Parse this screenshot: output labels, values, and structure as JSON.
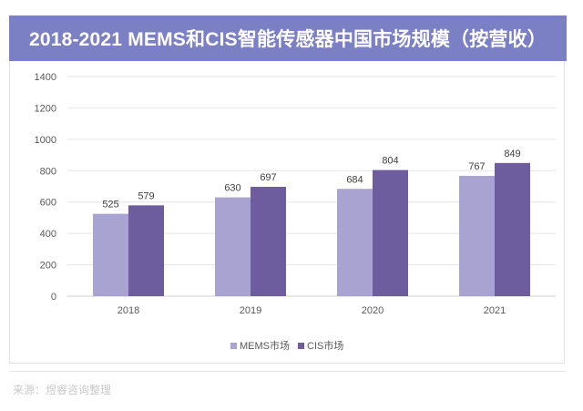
{
  "header": {
    "title": "2018-2021 MEMS和CIS智能传感器中国市场规模（按营收）"
  },
  "chart_data": {
    "type": "bar",
    "title": "2018-2021 MEMS和CIS智能传感器中国市场规模（按营收）",
    "categories": [
      "2018",
      "2019",
      "2020",
      "2021"
    ],
    "series": [
      {
        "name": "MEMS市场",
        "values": [
          525,
          630,
          684,
          767
        ],
        "color": "#a9a3d1"
      },
      {
        "name": "CIS市场",
        "values": [
          579,
          697,
          804,
          849
        ],
        "color": "#6d5d9e"
      }
    ],
    "ylim": [
      0,
      1400
    ],
    "yticks": [
      0,
      200,
      400,
      600,
      800,
      1000,
      1200,
      1400
    ],
    "grid": true,
    "legend": "bottom",
    "xlabel": "",
    "ylabel": ""
  },
  "footer": {
    "source": "来源：煜睿咨询整理"
  }
}
